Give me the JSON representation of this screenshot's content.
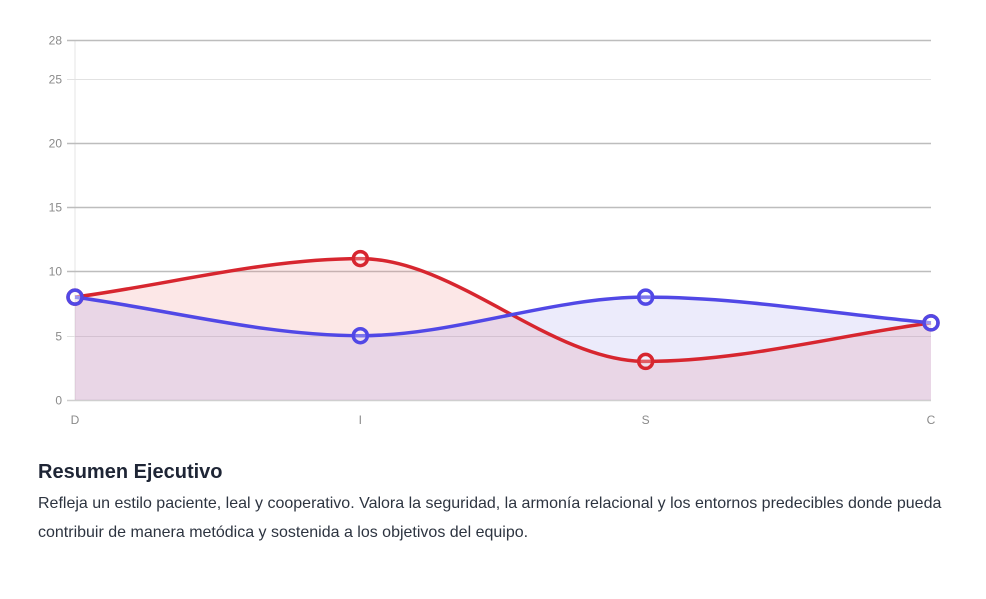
{
  "chart_data": {
    "type": "line",
    "title": "",
    "xlabel": "",
    "ylabel": "",
    "categories": [
      "D",
      "I",
      "S",
      "C"
    ],
    "series": [
      {
        "name": "Serie roja",
        "values": [
          8,
          11,
          3,
          6
        ],
        "color": "#d7262f",
        "fill": "rgba(240,120,120,0.18)"
      },
      {
        "name": "Serie azul",
        "values": [
          8,
          5,
          8,
          6
        ],
        "color": "#5148e6",
        "fill": "rgba(120,110,230,0.14)"
      }
    ],
    "ylim": [
      0,
      28
    ],
    "yticks": [
      0,
      5,
      10,
      15,
      20,
      25,
      28
    ],
    "grid": true,
    "smooth": true,
    "legend": "none"
  },
  "summary": {
    "title": "Resumen Ejecutivo",
    "body": "Refleja un estilo paciente, leal y cooperativo. Valora la seguridad, la armonía relacional y los entornos predecibles donde pueda contribuir de manera metódica y sostenida a los objetivos del equipo."
  }
}
